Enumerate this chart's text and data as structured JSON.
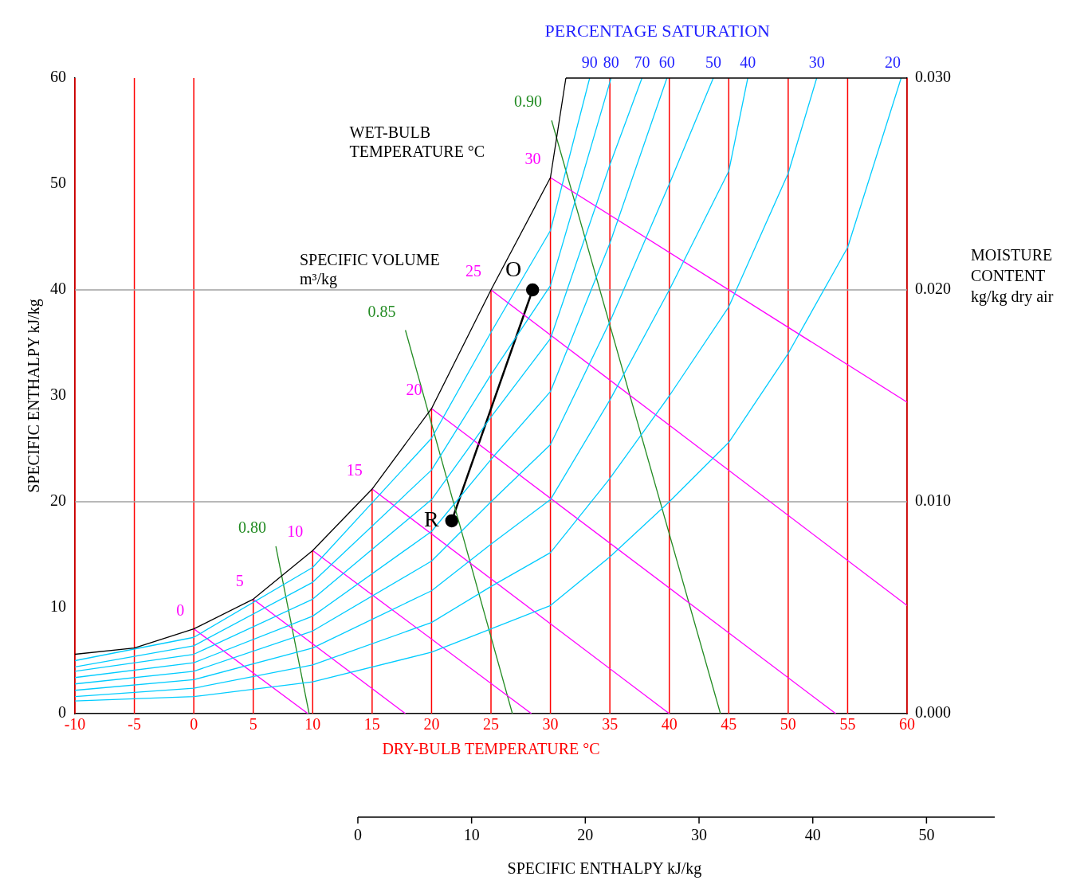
{
  "chart_data": {
    "type": "line",
    "title": "PERCENTAGE SATURATION",
    "xlabel": "DRY-BULB TEMPERATURE °C",
    "ylabel": "MOISTURE CONTENT kg/kg dry air",
    "xlim": [
      -10,
      60
    ],
    "xticks": [
      -10,
      -5,
      0,
      5,
      10,
      15,
      20,
      25,
      30,
      35,
      40,
      45,
      50,
      55,
      60
    ],
    "ylim": [
      0,
      0.03
    ],
    "yticks": [
      {
        "value": 0,
        "label": "0.000"
      },
      {
        "value": 0.01,
        "label": "0.010"
      },
      {
        "value": 0.02,
        "label": "0.020"
      },
      {
        "value": 0.03,
        "label": "0.030"
      }
    ],
    "x2lim": [
      0,
      56
    ],
    "x2ticks": [
      0,
      10,
      20,
      30,
      40,
      50
    ],
    "x2label": "SPECIFIC ENTHALPY kJ/kg",
    "y3lim": [
      0,
      60
    ],
    "y3ticks": [
      0,
      10,
      20,
      30,
      40,
      50,
      60
    ],
    "y3label": "SPECIFIC ENTHALPY kJ/kg",
    "grid": "x",
    "legend": false,
    "marker": "none",
    "series": [
      {
        "color": "#000000",
        "x": [
          -10,
          -5,
          0,
          5,
          10,
          15,
          20,
          25,
          30,
          31.3
        ],
        "values": [
          0.0028,
          0.0031,
          0.004,
          0.0054,
          0.0077,
          0.0106,
          0.0144,
          0.02,
          0.0253,
          0.03
        ]
      },
      {
        "name": "90",
        "color": "#00ccff",
        "x": [
          -10,
          0,
          10,
          20,
          25,
          30,
          33.3
        ],
        "values": [
          0.0025,
          0.0036,
          0.0069,
          0.013,
          0.018,
          0.0228,
          0.03
        ]
      },
      {
        "name": "80",
        "color": "#00ccff",
        "x": [
          -10,
          0,
          10,
          20,
          25,
          30,
          35.1
        ],
        "values": [
          0.0022,
          0.0032,
          0.0062,
          0.0115,
          0.016,
          0.0202,
          0.03
        ]
      },
      {
        "name": "70",
        "color": "#00ccff",
        "x": [
          -10,
          0,
          10,
          20,
          25,
          30,
          35,
          37.7
        ],
        "values": [
          0.002,
          0.0028,
          0.0054,
          0.0101,
          0.014,
          0.0177,
          0.0259,
          0.03
        ]
      },
      {
        "name": "60",
        "color": "#00ccff",
        "x": [
          -10,
          0,
          10,
          20,
          25,
          30,
          35,
          39.8
        ],
        "values": [
          0.0017,
          0.0024,
          0.0046,
          0.0086,
          0.012,
          0.0152,
          0.0222,
          0.03
        ]
      },
      {
        "name": "50",
        "color": "#00ccff",
        "x": [
          -10,
          0,
          10,
          20,
          25,
          30,
          35,
          40,
          43.7
        ],
        "values": [
          0.0014,
          0.002,
          0.0039,
          0.0072,
          0.01,
          0.0127,
          0.0185,
          0.025,
          0.03
        ]
      },
      {
        "name": "40",
        "color": "#00ccff",
        "x": [
          -10,
          0,
          10,
          20,
          25,
          30,
          35,
          40,
          45,
          46.6
        ],
        "values": [
          0.0011,
          0.0016,
          0.0031,
          0.0058,
          0.008,
          0.0101,
          0.0148,
          0.02,
          0.0256,
          0.03
        ]
      },
      {
        "name": "30",
        "color": "#00ccff",
        "x": [
          -10,
          0,
          10,
          20,
          25,
          30,
          35,
          40,
          45,
          50,
          52.4
        ],
        "values": [
          0.0008,
          0.0012,
          0.0023,
          0.0043,
          0.006,
          0.0076,
          0.0111,
          0.015,
          0.0192,
          0.0255,
          0.03
        ]
      },
      {
        "name": "20",
        "color": "#00ccff",
        "x": [
          -10,
          0,
          10,
          20,
          25,
          30,
          35,
          40,
          45,
          50,
          55,
          59.5
        ],
        "values": [
          0.0006,
          0.0008,
          0.0015,
          0.0029,
          0.004,
          0.0051,
          0.0074,
          0.01,
          0.0128,
          0.017,
          0.022,
          0.03
        ]
      },
      {
        "name": "0",
        "color": "#ff00ff",
        "x": [
          0,
          9.6
        ],
        "values": [
          0.004,
          0
        ]
      },
      {
        "name": "5",
        "color": "#ff00ff",
        "x": [
          5,
          17.8
        ],
        "values": [
          0.0054,
          0
        ]
      },
      {
        "name": "10",
        "color": "#ff00ff",
        "x": [
          10,
          28.4
        ],
        "values": [
          0.0077,
          0
        ]
      },
      {
        "name": "15",
        "color": "#ff00ff",
        "x": [
          15,
          40
        ],
        "values": [
          0.0106,
          0
        ]
      },
      {
        "name": "20",
        "color": "#ff00ff",
        "x": [
          20,
          54
        ],
        "values": [
          0.0144,
          0
        ]
      },
      {
        "name": "25",
        "color": "#ff00ff",
        "x": [
          25,
          60
        ],
        "values": [
          0.02,
          0.0051
        ]
      },
      {
        "name": "30",
        "color": "#ff00ff",
        "x": [
          30,
          60
        ],
        "values": [
          0.0253,
          0.0147
        ]
      },
      {
        "name": "0.80",
        "color": "#228b22",
        "x": [
          6.9,
          9.7
        ],
        "values": [
          0.0079,
          0
        ]
      },
      {
        "name": "0.85",
        "color": "#228b22",
        "x": [
          17.8,
          26.8
        ],
        "values": [
          0.0181,
          0
        ]
      },
      {
        "name": "0.90",
        "color": "#228b22",
        "x": [
          30.1,
          44.3
        ],
        "values": [
          0.028,
          0
        ]
      },
      {
        "color": "#000000",
        "marker": "circle",
        "x": [
          21.7,
          28.5
        ],
        "values": [
          0.0091,
          0.02
        ]
      }
    ],
    "ref_lines": [
      {
        "axis": "y",
        "value": 0.01,
        "color": "#a0a0a0"
      },
      {
        "axis": "y",
        "value": 0.02,
        "color": "#a0a0a0"
      }
    ],
    "annotations": [
      "WET-BULB TEMPERATURE °C",
      "SPECIFIC VOLUME m³/kg",
      {
        "text": "O",
        "x": 28.5,
        "y": 0.02
      },
      {
        "text": "R",
        "x": 21.7,
        "y": 0.0091
      }
    ]
  }
}
